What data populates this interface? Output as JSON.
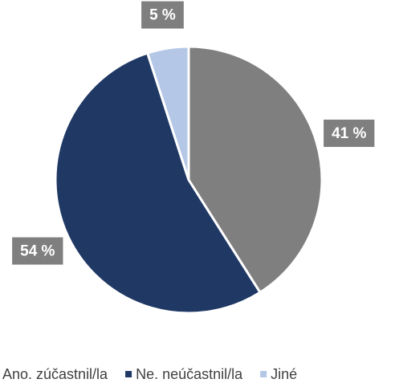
{
  "chart_data": {
    "type": "pie",
    "categories": [
      "Ano. zúčastnil/la",
      "Ne. neúčastnil/la",
      "Jiné"
    ],
    "values": [
      41,
      54,
      5
    ],
    "value_labels": [
      "41 %",
      "54 %",
      "5 %"
    ],
    "colors": [
      "#7f7f7f",
      "#1f3864",
      "#b4c7e7"
    ],
    "legend": "bottom"
  }
}
